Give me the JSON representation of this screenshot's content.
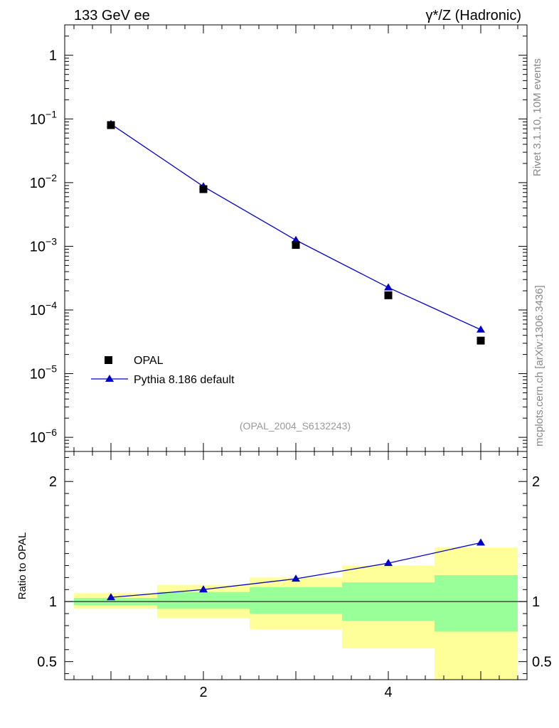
{
  "header": {
    "left": "133 GeV ee",
    "right": "γ*/Z (Hadronic)"
  },
  "side_labels": {
    "rivet": "Rivet 3.1.10,  10M events",
    "mcplots": "mcplots.cern.ch [arXiv:1306.3436]"
  },
  "watermark": "(OPAL_2004_S6132243)",
  "colors": {
    "mc": "#0000cc",
    "data": "#000000",
    "band_inner": "#99ff99",
    "band_outer": "#ffff99"
  },
  "chart_data": [
    {
      "type": "scatter",
      "yscale": "log",
      "ylim": [
        6e-07,
        3
      ],
      "xlim": [
        0.5,
        5.5
      ],
      "y_ticks": [
        {
          "value": 1,
          "label": "1",
          "exp": ""
        },
        {
          "value": 0.1,
          "label": "10",
          "exp": "−1"
        },
        {
          "value": 0.01,
          "label": "10",
          "exp": "−2"
        },
        {
          "value": 0.001,
          "label": "10",
          "exp": "−3"
        },
        {
          "value": 0.0001,
          "label": "10",
          "exp": "−4"
        },
        {
          "value": 1e-05,
          "label": "10",
          "exp": "−5"
        },
        {
          "value": 1e-06,
          "label": "10",
          "exp": "−6"
        }
      ],
      "legend_position": "lower-left",
      "series": [
        {
          "name": "OPAL",
          "marker": "square",
          "x": [
            1,
            2,
            3,
            4,
            5
          ],
          "y": [
            0.08,
            0.0079,
            0.00105,
            0.00017,
            3.3e-05
          ]
        },
        {
          "name": "Pythia 8.186 default",
          "marker": "triangle",
          "line": true,
          "x": [
            1,
            2,
            3,
            4,
            5
          ],
          "y": [
            0.083,
            0.0087,
            0.00125,
            0.000225,
            4.9e-05
          ]
        }
      ]
    },
    {
      "type": "line",
      "ylabel": "Ratio to OPAL",
      "ylim": [
        0.35,
        2.25
      ],
      "xlim": [
        0.5,
        5.5
      ],
      "x_ticks": [
        2,
        4
      ],
      "y_ticks": [
        0.5,
        1,
        2
      ],
      "y_tick_labels": [
        "0.5",
        "1",
        "2"
      ],
      "reference": 1,
      "bins": [
        {
          "lo": 0.6,
          "hi": 1.5,
          "inner": [
            0.97,
            1.03
          ],
          "outer": [
            0.94,
            1.07
          ]
        },
        {
          "lo": 1.5,
          "hi": 2.5,
          "inner": [
            0.94,
            1.08
          ],
          "outer": [
            0.86,
            1.14
          ]
        },
        {
          "lo": 2.5,
          "hi": 3.5,
          "inner": [
            0.9,
            1.12
          ],
          "outer": [
            0.77,
            1.2
          ]
        },
        {
          "lo": 3.5,
          "hi": 4.5,
          "inner": [
            0.84,
            1.16
          ],
          "outer": [
            0.61,
            1.3
          ]
        },
        {
          "lo": 4.5,
          "hi": 5.4,
          "inner": [
            0.75,
            1.22
          ],
          "outer": [
            0.35,
            1.45
          ]
        }
      ],
      "series": [
        {
          "name": "Pythia 8.186 default",
          "marker": "triangle",
          "x": [
            1,
            2,
            3,
            4,
            5
          ],
          "y": [
            1.035,
            1.1,
            1.19,
            1.32,
            1.49
          ]
        }
      ]
    }
  ]
}
